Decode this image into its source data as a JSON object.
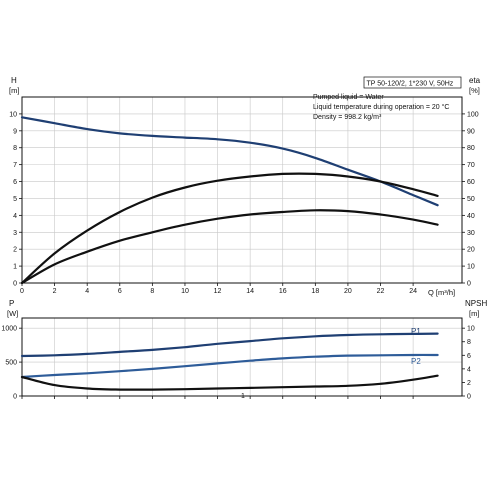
{
  "chart_data": [
    {
      "type": "line",
      "title": "TP 50-120/2, 1*230 V, 50Hz",
      "notes": [
        "Pumped liquid = Water",
        "Liquid temperature during operation = 20 °C",
        "Density = 998.2 kg/m³"
      ],
      "x_unit": "Q [m³/h]",
      "x_ticks": [
        0,
        2,
        4,
        6,
        8,
        10,
        12,
        14,
        16,
        18,
        20,
        22,
        24
      ],
      "xlim": [
        0,
        27
      ],
      "y_left_label": "H",
      "y_left_unit": "[m]",
      "y_left_ticks": [
        0,
        1,
        2,
        3,
        4,
        5,
        6,
        7,
        8,
        9,
        10
      ],
      "ylim_left": [
        0,
        11
      ],
      "y_right_label": "eta",
      "y_right_unit": "[%]",
      "y_right_ticks": [
        0,
        10,
        20,
        30,
        40,
        50,
        60,
        70,
        80,
        90,
        100
      ],
      "ylim_right": [
        0,
        110
      ],
      "grid": true,
      "series": [
        {
          "axis": "left",
          "color": "#1f3f73",
          "x": [
            0,
            2,
            4,
            6,
            8,
            10,
            12,
            14,
            16,
            18,
            20,
            22,
            24,
            25.5
          ],
          "y": [
            9.8,
            9.45,
            9.1,
            8.85,
            8.7,
            8.6,
            8.5,
            8.3,
            7.95,
            7.4,
            6.7,
            6.0,
            5.2,
            4.6
          ]
        },
        {
          "axis": "left",
          "color": "#111111",
          "x": [
            0,
            2,
            4,
            6,
            8,
            10,
            12,
            14,
            16,
            18,
            20,
            22,
            24,
            25.5
          ],
          "y": [
            0,
            1.1,
            1.85,
            2.5,
            3.0,
            3.45,
            3.8,
            4.05,
            4.2,
            4.3,
            4.25,
            4.05,
            3.75,
            3.45
          ]
        },
        {
          "axis": "right",
          "color": "#111111",
          "x": [
            0,
            2,
            4,
            6,
            8,
            10,
            12,
            14,
            16,
            18,
            20,
            22,
            24,
            25.5
          ],
          "y": [
            0,
            17.5,
            31,
            42,
            50.5,
            56.5,
            60.5,
            63,
            64.5,
            64.5,
            63,
            60,
            55.5,
            51.5
          ]
        }
      ]
    },
    {
      "type": "line",
      "x_unit": "Q [m³/h]",
      "x_ticks": [
        0,
        2,
        4,
        6,
        8,
        10,
        12,
        14,
        16,
        18,
        20,
        22,
        24
      ],
      "xlim": [
        0,
        27
      ],
      "y_left_label": "P",
      "y_left_unit": "[W]",
      "y_left_ticks": [
        0,
        500,
        1000
      ],
      "ylim_left": [
        0,
        1150
      ],
      "y_right_label": "NPSH",
      "y_right_unit": "[m]",
      "y_right_ticks": [
        0,
        2,
        4,
        6,
        8,
        10
      ],
      "ylim_right": [
        0,
        11.5
      ],
      "grid": true,
      "series": [
        {
          "name": "P1",
          "axis": "left",
          "color": "#1f3f73",
          "x": [
            0,
            2,
            4,
            6,
            8,
            10,
            12,
            14,
            16,
            18,
            20,
            22,
            24,
            25.5
          ],
          "y": [
            590,
            600,
            620,
            650,
            680,
            720,
            770,
            810,
            850,
            880,
            900,
            910,
            915,
            920
          ]
        },
        {
          "name": "P2",
          "axis": "left",
          "color": "#2e5c99",
          "x": [
            0,
            2,
            4,
            6,
            8,
            10,
            12,
            14,
            16,
            18,
            20,
            22,
            24,
            25.5
          ],
          "y": [
            280,
            310,
            335,
            365,
            400,
            440,
            480,
            520,
            555,
            580,
            595,
            600,
            605,
            605
          ]
        },
        {
          "axis": "right",
          "color": "#111111",
          "x": [
            0,
            2,
            4,
            6,
            8,
            10,
            12,
            14,
            16,
            18,
            20,
            22,
            24,
            25.5
          ],
          "y": [
            2.8,
            1.6,
            1.1,
            0.95,
            0.95,
            1.0,
            1.1,
            1.2,
            1.3,
            1.4,
            1.5,
            1.8,
            2.4,
            3.0
          ]
        }
      ],
      "annotation": "1"
    }
  ]
}
